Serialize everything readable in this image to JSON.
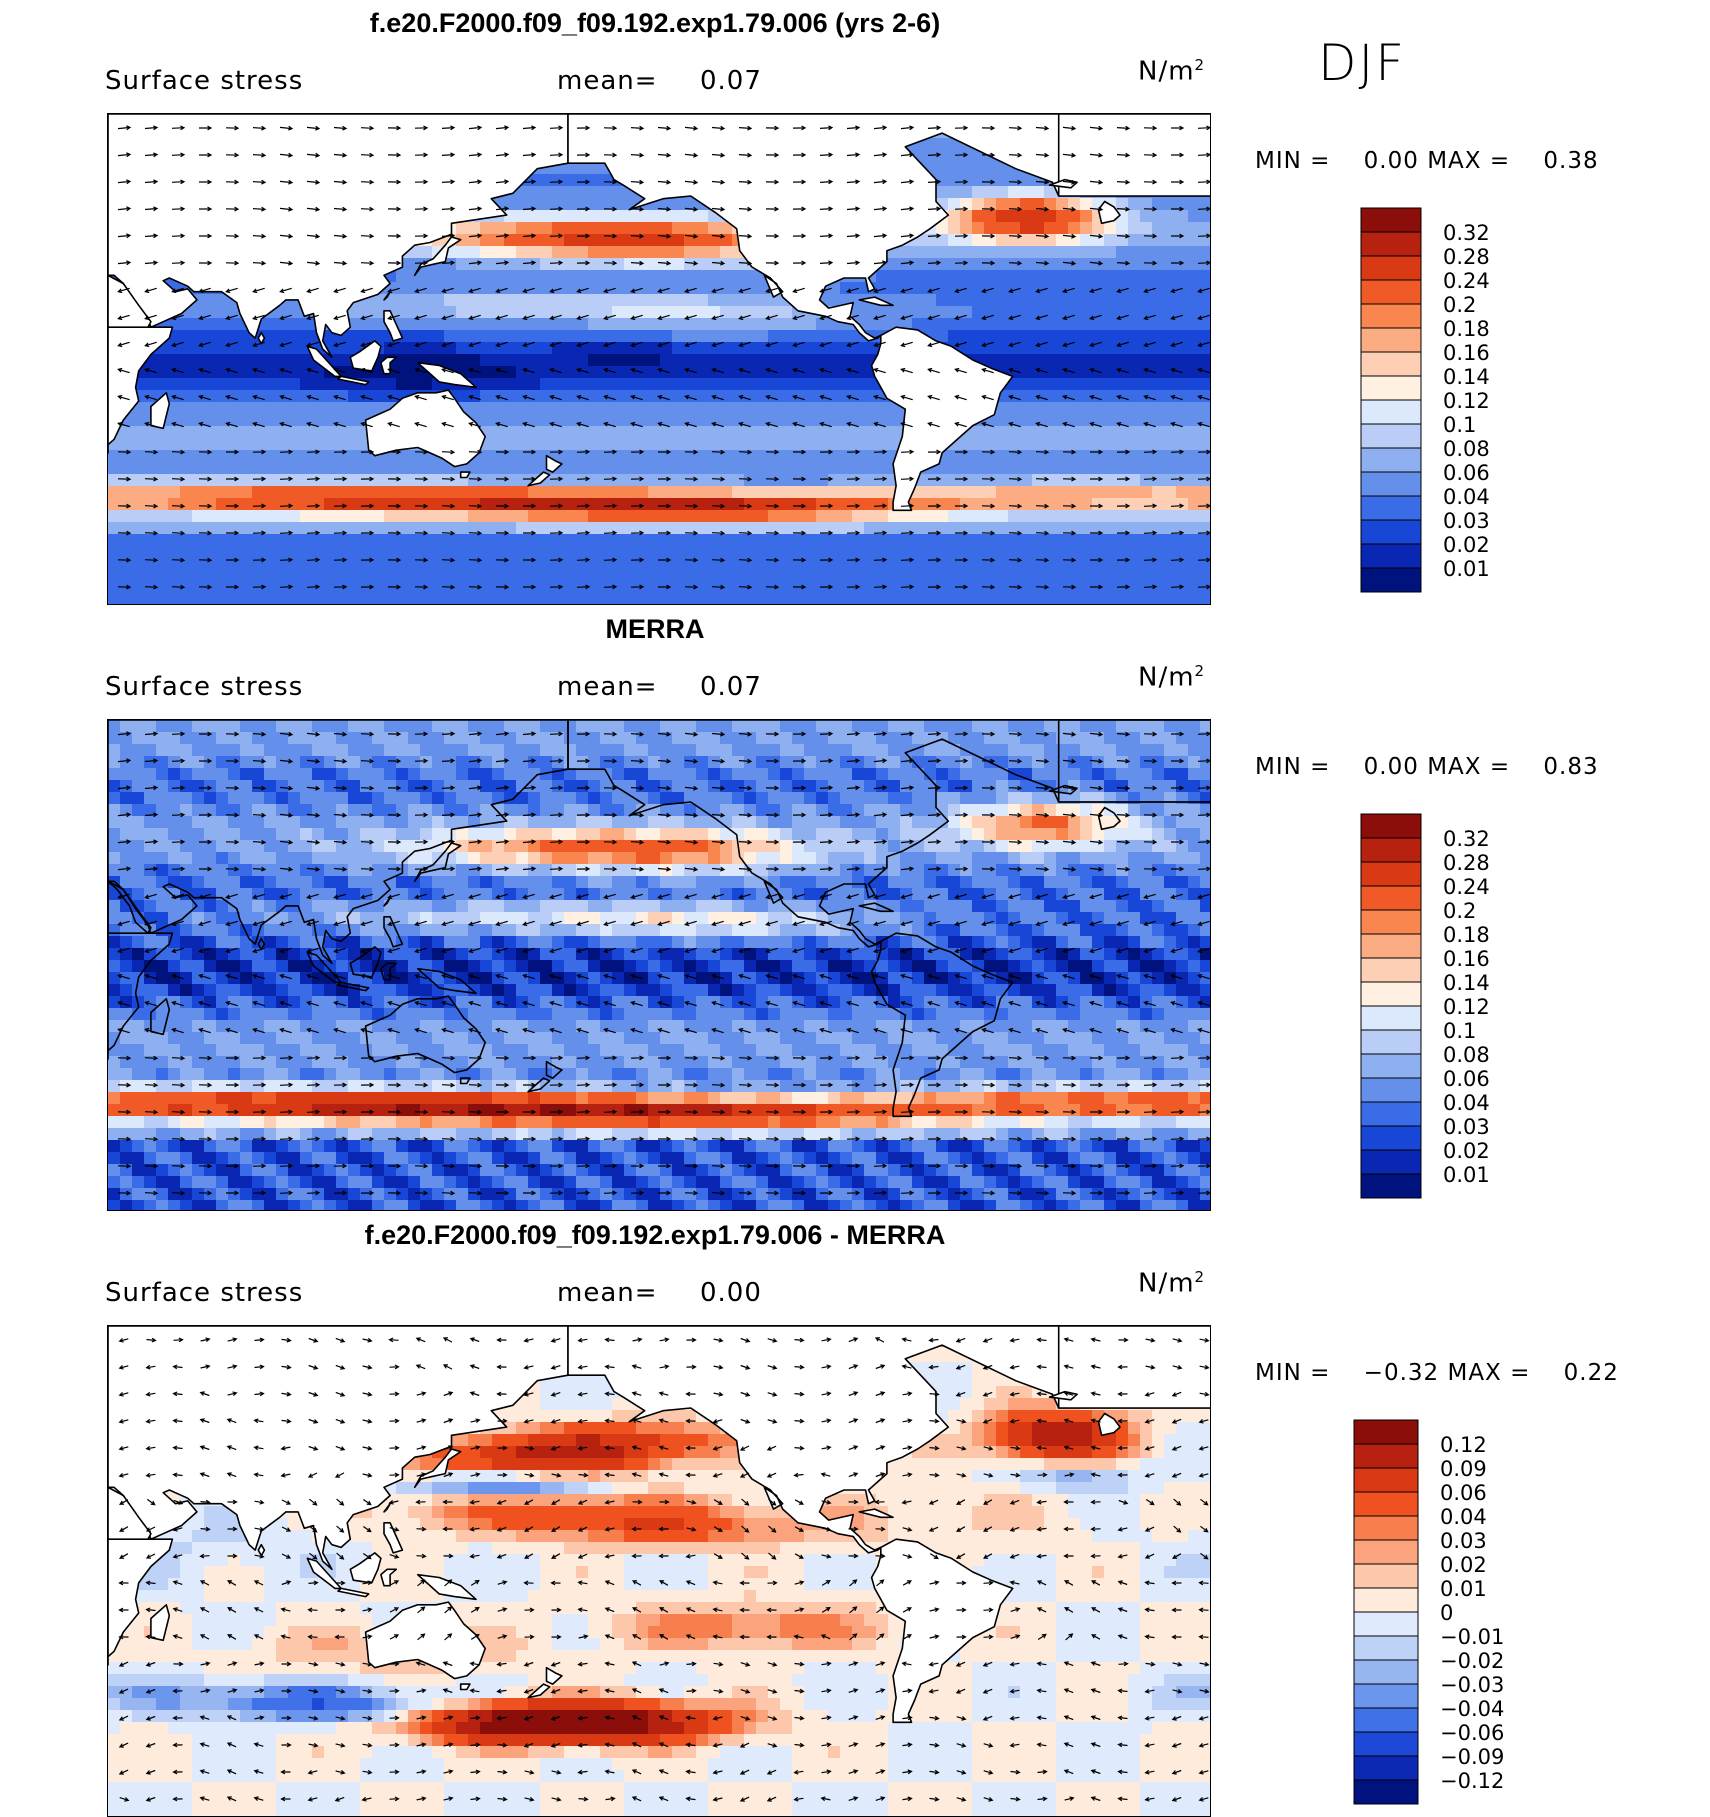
{
  "season": "DJF",
  "panels": [
    {
      "id": "model",
      "title": "f.e20.F2000.f09_f09.192.exp1.79.006 (yrs 2-6)",
      "label": "Surface stress",
      "mean_label": "mean=",
      "mean_value": "0.07",
      "units": "N/m",
      "units_exp": "2",
      "min_label": "MIN =",
      "min_value": "0.00",
      "max_label": "MAX =",
      "max_value": "0.38",
      "colorbar_labels": [
        "0.32",
        "0.28",
        "0.24",
        "0.2",
        "0.18",
        "0.16",
        "0.14",
        "0.12",
        "0.1",
        "0.08",
        "0.06",
        "0.04",
        "0.03",
        "0.02",
        "0.01"
      ],
      "colorbar_colors": [
        "#8c0e0a",
        "#b72210",
        "#d93a14",
        "#ef5a26",
        "#f9854f",
        "#fcac83",
        "#fdd0b6",
        "#fff0e2",
        "#dce8fb",
        "#b9cdf6",
        "#8fb0f0",
        "#6490ec",
        "#3a6ce8",
        "#1846d6",
        "#0a27b3",
        "#00127e"
      ]
    },
    {
      "id": "obs",
      "title": "MERRA",
      "label": "Surface stress",
      "mean_label": "mean=",
      "mean_value": "0.07",
      "units": "N/m",
      "units_exp": "2",
      "min_label": "MIN =",
      "min_value": "0.00",
      "max_label": "MAX =",
      "max_value": "0.83",
      "colorbar_labels": [
        "0.32",
        "0.28",
        "0.24",
        "0.2",
        "0.18",
        "0.16",
        "0.14",
        "0.12",
        "0.1",
        "0.08",
        "0.06",
        "0.04",
        "0.03",
        "0.02",
        "0.01"
      ],
      "colorbar_colors": [
        "#8c0e0a",
        "#b72210",
        "#d93a14",
        "#ef5a26",
        "#f9854f",
        "#fcac83",
        "#fdd0b6",
        "#fff0e2",
        "#dce8fb",
        "#b9cdf6",
        "#8fb0f0",
        "#6490ec",
        "#3a6ce8",
        "#1846d6",
        "#0a27b3",
        "#00127e"
      ]
    },
    {
      "id": "diff",
      "title": "f.e20.F2000.f09_f09.192.exp1.79.006 - MERRA",
      "label": "Surface stress",
      "mean_label": "mean=",
      "mean_value": "0.00",
      "units": "N/m",
      "units_exp": "2",
      "min_label": "MIN =",
      "min_value": "−0.32",
      "max_label": "MAX =",
      "max_value": "0.22",
      "colorbar_labels": [
        "0.12",
        "0.09",
        "0.06",
        "0.04",
        "0.03",
        "0.02",
        "0.01",
        "0",
        "−0.01",
        "−0.02",
        "−0.03",
        "−0.04",
        "−0.06",
        "−0.09",
        "−0.12"
      ],
      "colorbar_colors": [
        "#8c0e0a",
        "#b72210",
        "#d93a14",
        "#f0521f",
        "#f77e4d",
        "#faa37c",
        "#fcc7ab",
        "#feebdb",
        "#dfeafc",
        "#bed2f7",
        "#97b6f1",
        "#6c96ed",
        "#4071e8",
        "#1d49d6",
        "#0b29b3",
        "#00127e"
      ]
    }
  ]
}
